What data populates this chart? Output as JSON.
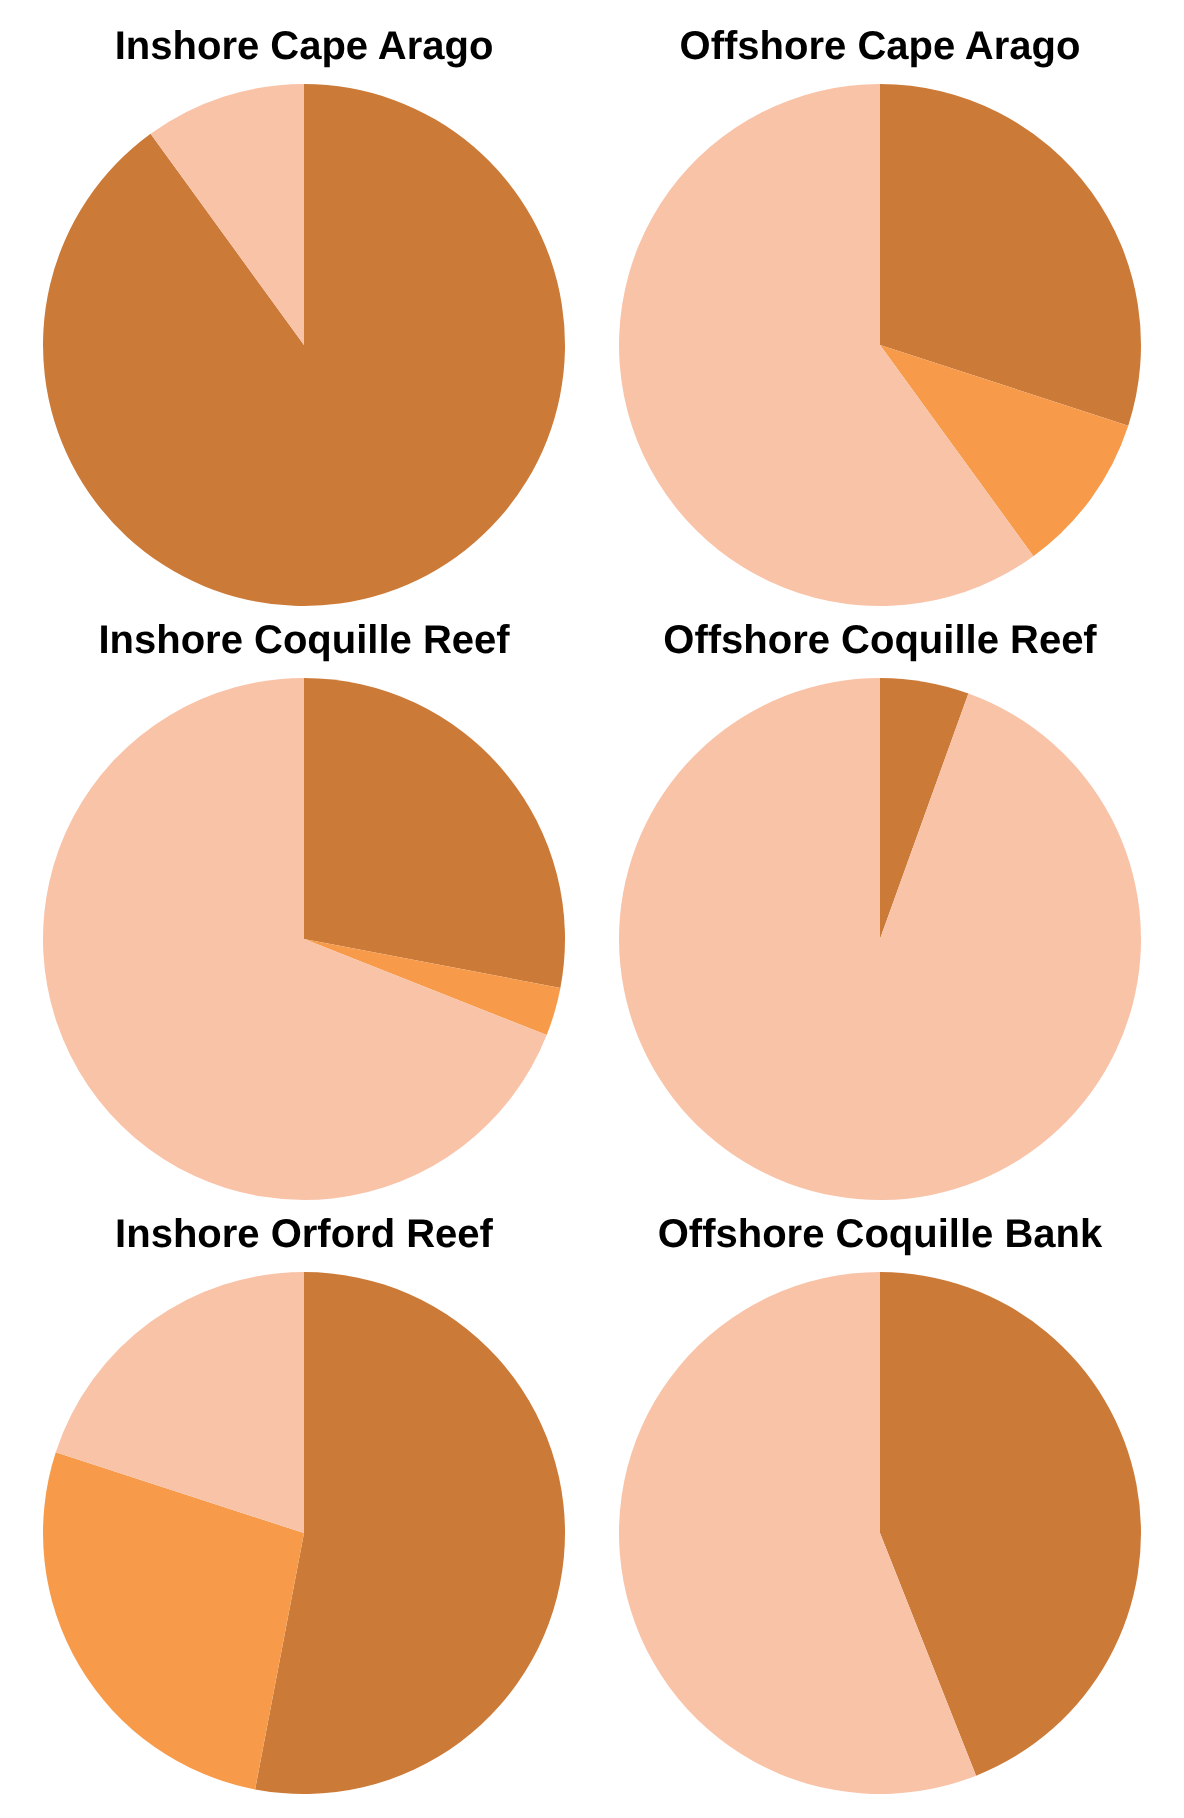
{
  "chart_data": [
    {
      "type": "pie",
      "title": "Inshore Cape Arago",
      "categories": [
        null,
        null
      ],
      "values": [
        90,
        10
      ],
      "colors": [
        "#cc7a38",
        "#f9c3a8"
      ],
      "legend": false
    },
    {
      "type": "pie",
      "title": "Offshore Cape Arago",
      "categories": [
        null,
        null,
        null
      ],
      "values": [
        30,
        10,
        60
      ],
      "colors": [
        "#cc7a38",
        "#f79a4a",
        "#f9c3a8"
      ],
      "legend": false
    },
    {
      "type": "pie",
      "title": "Inshore Coquille Reef",
      "categories": [
        null,
        null,
        null
      ],
      "values": [
        28,
        3,
        69
      ],
      "colors": [
        "#cc7a38",
        "#f79a4a",
        "#f9c3a8"
      ],
      "legend": false
    },
    {
      "type": "pie",
      "title": "Offshore Coquille Reef",
      "categories": [
        null,
        null
      ],
      "values": [
        5.5,
        94.5
      ],
      "colors": [
        "#cc7a38",
        "#f9c3a8"
      ],
      "legend": false
    },
    {
      "type": "pie",
      "title": "Inshore Orford Reef",
      "categories": [
        null,
        null,
        null
      ],
      "values": [
        53,
        27,
        20
      ],
      "colors": [
        "#cc7a38",
        "#f79a4a",
        "#f9c3a8"
      ],
      "legend": false
    },
    {
      "type": "pie",
      "title": "Offshore Coquille Bank",
      "categories": [
        null,
        null
      ],
      "values": [
        44,
        56
      ],
      "colors": [
        "#cc7a38",
        "#f9c3a8"
      ],
      "legend": false
    }
  ]
}
